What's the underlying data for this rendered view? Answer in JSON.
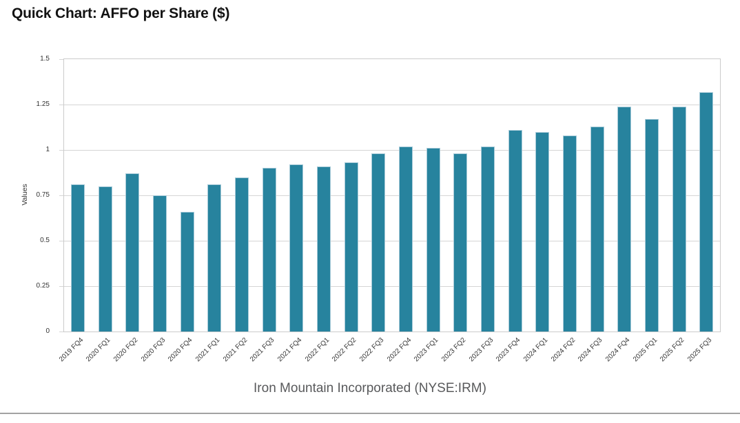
{
  "page": {
    "title": "Quick Chart: AFFO per Share ($)",
    "footer": "Iron Mountain Incorporated (NYSE:IRM)"
  },
  "chart_data": {
    "type": "bar",
    "title": "Quick Chart: AFFO per Share ($)",
    "xlabel": "Iron Mountain Incorporated (NYSE:IRM)",
    "ylabel": "Values",
    "ylim": [
      0,
      1.5
    ],
    "yticks": [
      0,
      0.25,
      0.5,
      0.75,
      1,
      1.25,
      1.5
    ],
    "ytick_labels": [
      "0",
      "0.25",
      "0.5",
      "0.75",
      "1",
      "1.25",
      "1.5"
    ],
    "grid": true,
    "legend_position": "none",
    "categories": [
      "2019 FQ4",
      "2020 FQ1",
      "2020 FQ2",
      "2020 FQ3",
      "2020 FQ4",
      "2021 FQ1",
      "2021 FQ2",
      "2021 FQ3",
      "2021 FQ4",
      "2022 FQ1",
      "2022 FQ2",
      "2022 FQ3",
      "2022 FQ4",
      "2023 FQ1",
      "2023 FQ2",
      "2023 FQ3",
      "2023 FQ4",
      "2024 FQ1",
      "2024 FQ2",
      "2024 FQ3",
      "2024 FQ4",
      "2025 FQ1",
      "2025 FQ2",
      "2025 FQ3"
    ],
    "values": [
      0.81,
      0.8,
      0.87,
      0.75,
      0.66,
      0.81,
      0.85,
      0.9,
      0.92,
      0.91,
      0.93,
      0.98,
      1.02,
      1.01,
      0.98,
      1.02,
      1.11,
      1.1,
      1.08,
      1.13,
      1.24,
      1.17,
      1.24,
      1.32
    ]
  },
  "colors": {
    "bar_fill": "#27839E",
    "bar_stroke": "#A9CBD9",
    "gridline": "#D4D4D4",
    "plot_border": "#CBCBCB",
    "tick_text": "#333333",
    "title_text": "#121212",
    "footer_text": "#58595B",
    "divider": "#A2A2A2"
  }
}
